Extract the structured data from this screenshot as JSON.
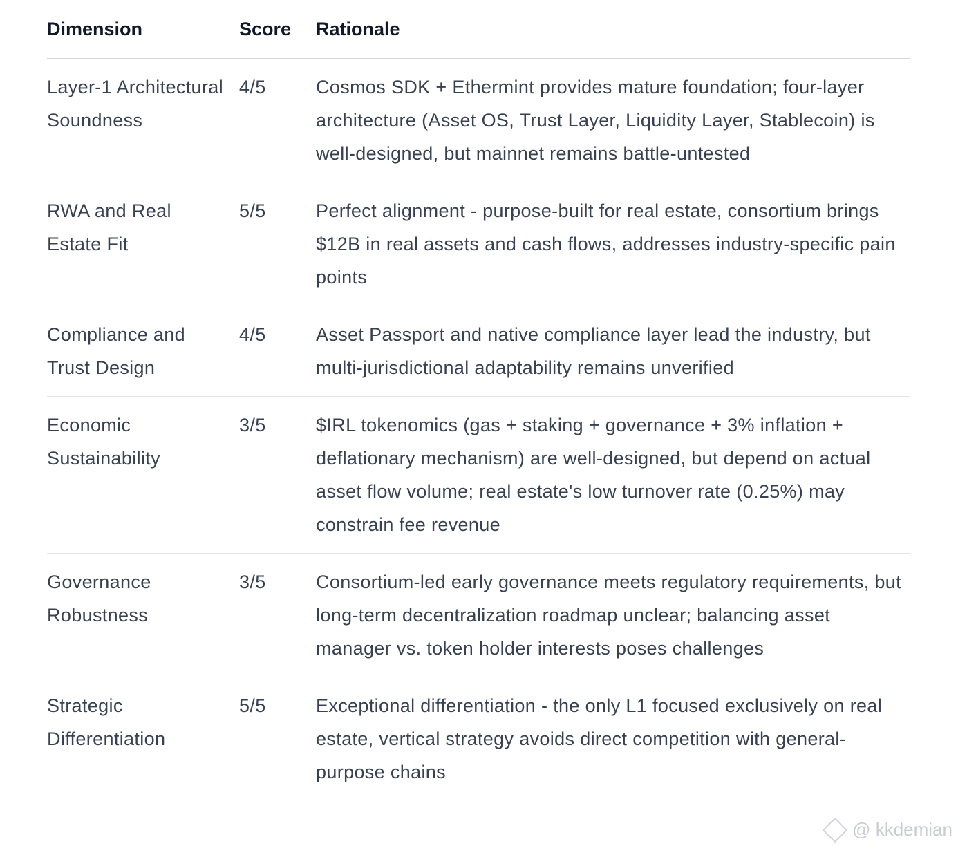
{
  "table": {
    "headers": [
      "Dimension",
      "Score",
      "Rationale"
    ],
    "rows": [
      {
        "dimension": "Layer-1 Architectural Soundness",
        "score": "4/5",
        "rationale": "Cosmos SDK + Ethermint provides mature foundation; four-layer architecture (Asset OS, Trust Layer, Liquidity Layer, Stablecoin) is well-designed, but mainnet remains battle-untested"
      },
      {
        "dimension": "RWA and Real Estate Fit",
        "score": "5/5",
        "rationale": "Perfect alignment - purpose-built for real estate, consortium brings $12B in real assets and cash flows, addresses industry-specific pain points"
      },
      {
        "dimension": "Compliance and Trust Design",
        "score": "4/5",
        "rationale": "Asset Passport and native compliance layer lead the industry, but multi-jurisdictional adaptability remains unverified"
      },
      {
        "dimension": "Economic Sustainability",
        "score": "3/5",
        "rationale": "$IRL tokenomics (gas + staking + governance + 3% inflation + deflationary mechanism) are well-designed, but depend on actual asset flow volume; real estate's low turnover rate (0.25%) may constrain fee revenue"
      },
      {
        "dimension": "Governance Robustness",
        "score": "3/5",
        "rationale": "Consortium-led early governance meets regulatory requirements, but long-term decentralization roadmap unclear; balancing asset manager vs. token holder interests poses challenges"
      },
      {
        "dimension": "Strategic Differentiation",
        "score": "5/5",
        "rationale": "Exceptional differentiation - the only L1 focused exclusively on real estate, vertical strategy avoids direct competition with general-purpose chains"
      }
    ]
  },
  "watermark": {
    "text": "@ kkdemian",
    "icon": "binance-logo-icon"
  }
}
